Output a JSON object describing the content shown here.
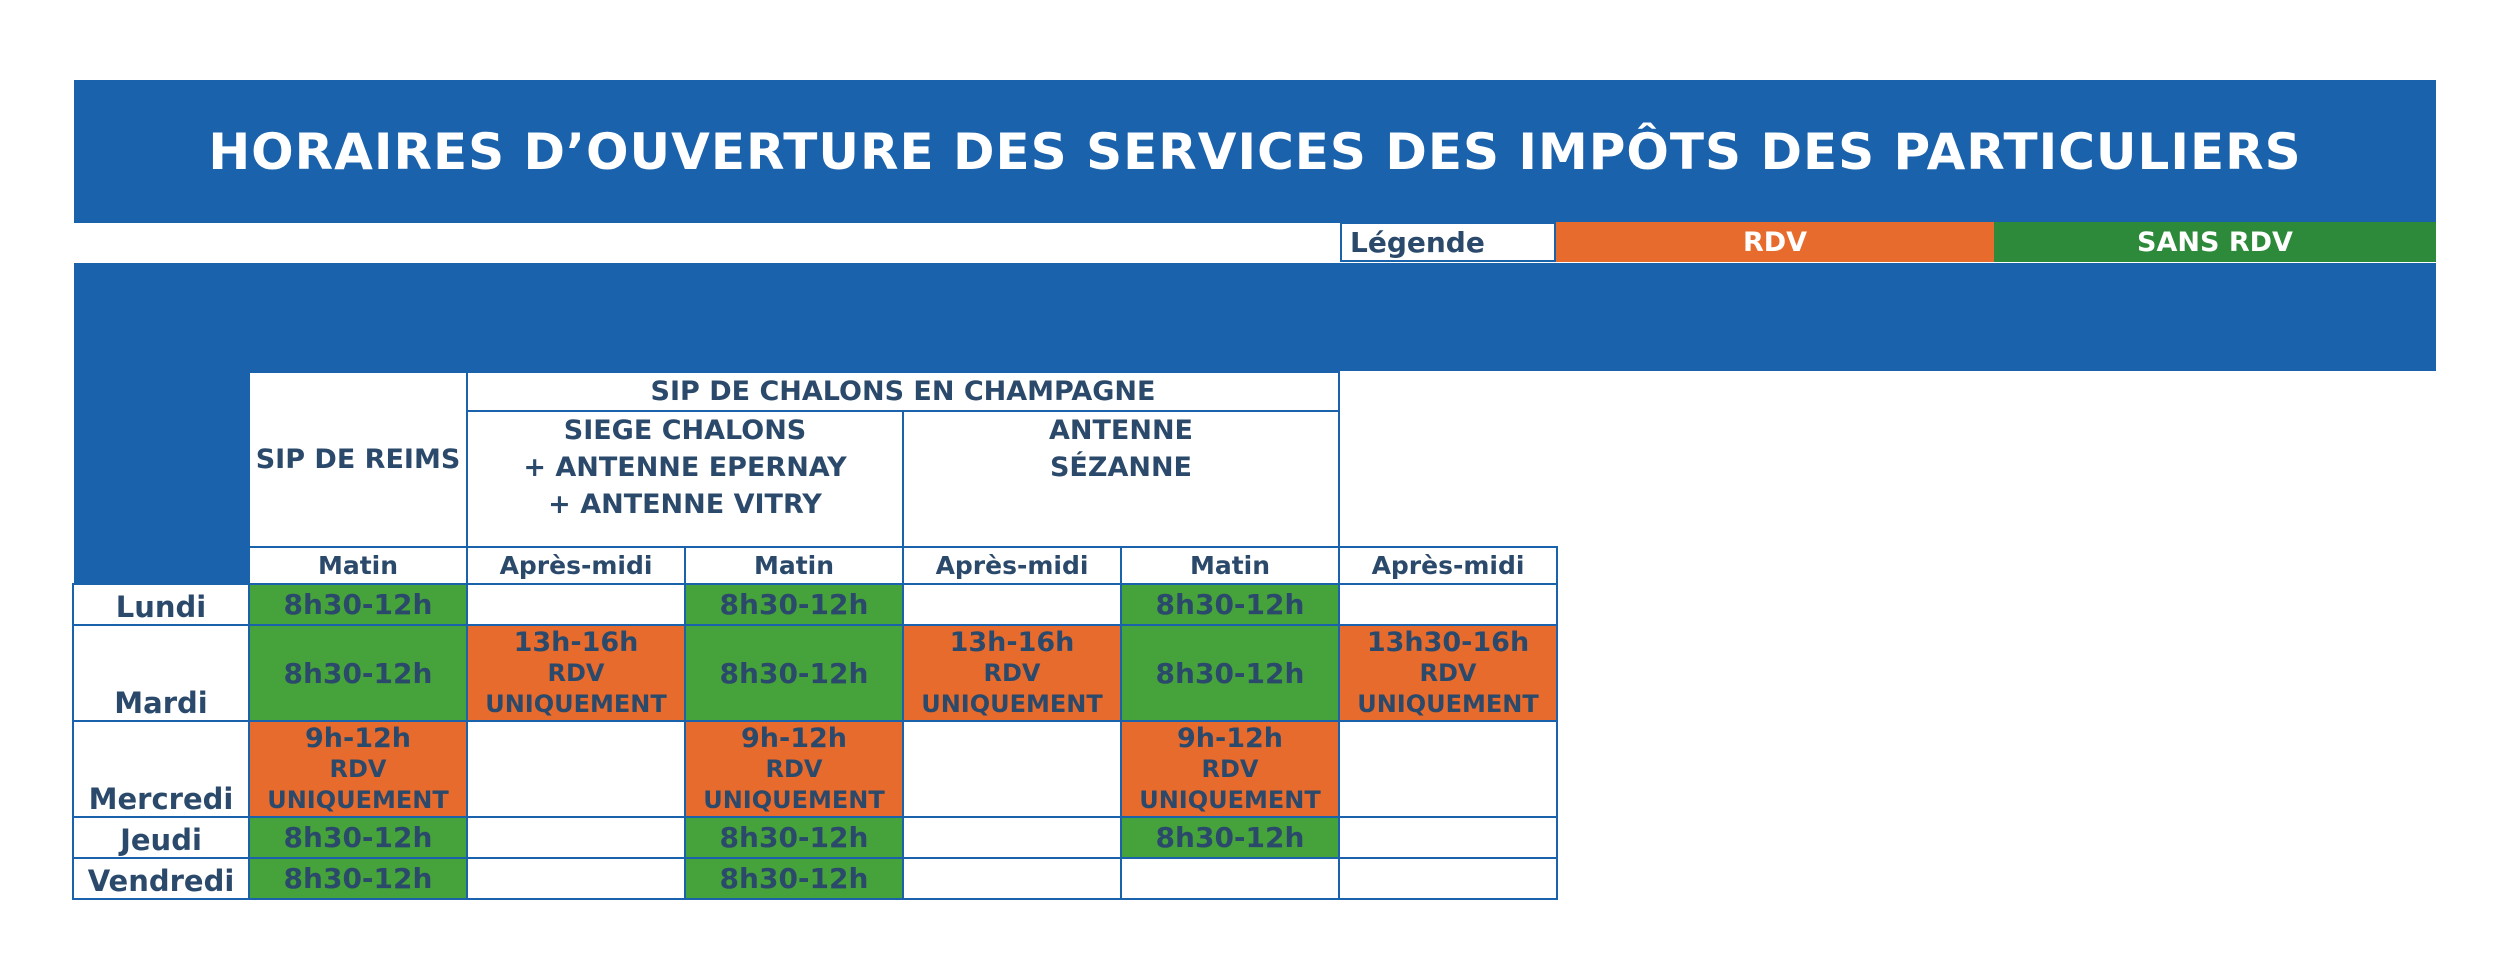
{
  "title": "HORAIRES D’OUVERTURE DES SERVICES DES IMPÔTS DES PARTICULIERS",
  "legend": {
    "label": "Légende",
    "rdv": "RDV",
    "sans_rdv": "SANS RDV"
  },
  "table": {
    "group_header": "SIP DE CHALONS EN CHAMPAGNE",
    "sites": {
      "reims": "SIP DE REIMS",
      "chalons_line1": "SIEGE CHALONS",
      "chalons_line2": "+ ANTENNE EPERNAY",
      "chalons_line3": "+ ANTENNE VITRY",
      "sezanne_line1": "ANTENNE",
      "sezanne_line2": "SÉZANNE"
    },
    "col_morning": "Matin",
    "col_afternoon": "Après-midi",
    "days": {
      "lundi": "Lundi",
      "mardi": "Mardi",
      "mercredi": "Mercredi",
      "jeudi": "Jeudi",
      "vendredi": "Vendredi"
    },
    "slot_830_12": "8h30-12h",
    "slot_13_16": "13h-16h",
    "slot_1330_16": "13h30-16h",
    "slot_9_12": "9h-12h",
    "rdv": "RDV",
    "uniquement": "UNIQUEMENT"
  },
  "colors": {
    "banner_blue": "#1b62ad",
    "rdv_orange": "#e76b2d",
    "sans_rdv_green": "#2d8a3a",
    "cell_green": "#46a23a"
  }
}
